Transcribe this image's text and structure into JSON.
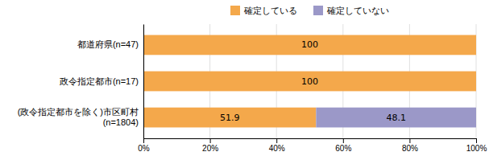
{
  "chart_data": {
    "type": "bar",
    "orientation": "horizontal",
    "stacked": true,
    "categories": [
      "都道府県(n=47)",
      "政令指定都市(n=17)",
      "(政令指定都市を除く)市区町村\n(n=1804)"
    ],
    "series": [
      {
        "name": "確定している",
        "color": "#F4A84B",
        "values": [
          100,
          100,
          51.9
        ]
      },
      {
        "name": "確定していない",
        "color": "#9B98C8",
        "values": [
          0,
          0,
          48.1
        ]
      }
    ],
    "xlim": [
      0,
      100
    ],
    "xticks": [
      {
        "value": 0,
        "label": "0%"
      },
      {
        "value": 20,
        "label": "20%"
      },
      {
        "value": 40,
        "label": "40%"
      },
      {
        "value": 60,
        "label": "60%"
      },
      {
        "value": 80,
        "label": "80%"
      },
      {
        "value": 100,
        "label": "100%"
      }
    ],
    "grid": true,
    "legend": "top",
    "data_labels": true
  }
}
